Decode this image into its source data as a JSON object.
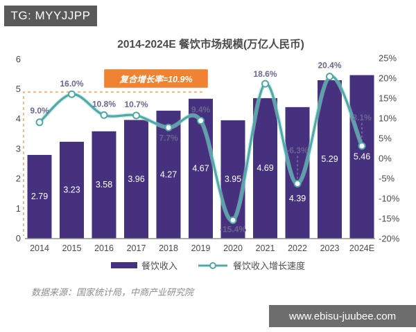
{
  "badge": {
    "text": "TG: MYYJJPP"
  },
  "annotation": {
    "cagr_label": "复合增长率=10.9%"
  },
  "source": {
    "text": "数据来源：国家统计局，中商产业研究院"
  },
  "watermark": {
    "text": "www.ebisu-juubee.com"
  },
  "colors": {
    "bar": "#46317f",
    "line": "#4fa9a6",
    "line_glow": "#a8d8d5",
    "marker_fill": "#ffffff",
    "pct_label": "#6e6490",
    "bar_label": "#ffffff",
    "axis_text": "#4a4a4a",
    "axis_line": "#8f8f8f",
    "accent_orange": "#ef8331",
    "dashed_orange": "#f2a25f",
    "leader_dash": "#8c84aa",
    "badge_bg": "#595959",
    "watermark_bg": "#6d6d6d"
  },
  "chart_data": {
    "type": "bar",
    "title": "2014-2024E 餐饮市场规模(万亿人民币)",
    "categories": [
      "2014",
      "2015",
      "2016",
      "2017",
      "2018",
      "2019",
      "2020",
      "2021",
      "2022",
      "2023",
      "2024E"
    ],
    "series": [
      {
        "name": "餐饮收入",
        "type": "bar",
        "axis": "left",
        "values": [
          2.79,
          3.23,
          3.58,
          3.96,
          4.27,
          4.67,
          3.95,
          4.69,
          4.39,
          5.29,
          5.46
        ]
      },
      {
        "name": "餐饮收入增长速度",
        "type": "line",
        "axis": "right",
        "values": [
          9.0,
          16.0,
          10.8,
          10.7,
          7.7,
          9.4,
          -15.4,
          18.6,
          -6.3,
          20.4,
          3.1
        ]
      }
    ],
    "point_labels": [
      "9.0%",
      "16.0%",
      "10.8%",
      "10.7%",
      "7.7%",
      "9.4%",
      "-15.4%",
      "18.6%",
      "-6.3%",
      "20.4%",
      "3.1%"
    ],
    "left_axis": {
      "ticks": [
        6,
        5,
        4,
        3,
        2,
        1,
        0
      ],
      "range": [
        0,
        6
      ]
    },
    "right_axis": {
      "ticks": [
        "25%",
        "20%",
        "15%",
        "10%",
        "5%",
        "0%",
        "-5%",
        "-10%",
        "-15%",
        "-20%"
      ],
      "range": [
        -20,
        25
      ]
    },
    "legend": [
      "餐饮收入",
      "餐饮收入增长速度"
    ],
    "cagr": "10.9%"
  }
}
